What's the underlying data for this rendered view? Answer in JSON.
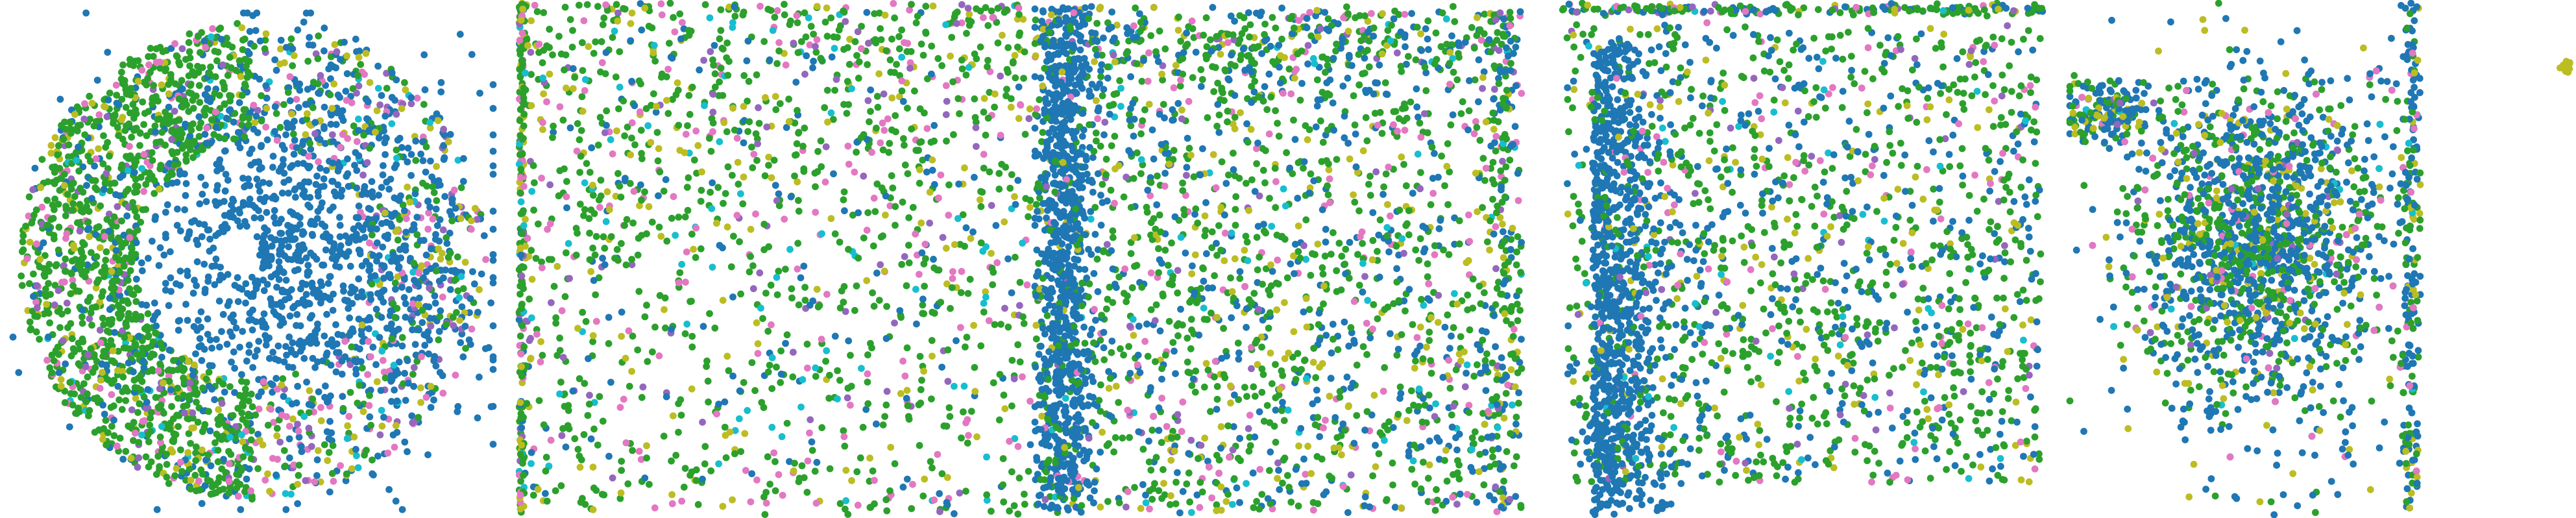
{
  "figure": {
    "panel_count": 5,
    "background": "#ffffff"
  },
  "palette": {
    "blue": "#1f77b4",
    "green": "#2ca02c",
    "olive": "#bcbd22",
    "pink": "#e377c2",
    "purple": "#9467bd",
    "cyan": "#17becf",
    "gray": "#7f7f7f"
  },
  "chart_data": [
    {
      "type": "scatter",
      "panel": 1,
      "shape": "disk",
      "axes_visible": false,
      "grid": false,
      "legend": "none",
      "series": [
        {
          "color": "#1f77b4",
          "approx_points": 1400
        },
        {
          "color": "#2ca02c",
          "approx_points": 1200
        },
        {
          "color": "#bcbd22",
          "approx_points": 220
        },
        {
          "color": "#e377c2",
          "approx_points": 200
        },
        {
          "color": "#9467bd",
          "approx_points": 140
        },
        {
          "color": "#17becf",
          "approx_points": 70
        }
      ]
    },
    {
      "type": "scatter",
      "panel": 2,
      "shape": "square",
      "axes_visible": false,
      "grid": false,
      "legend": "none",
      "series": [
        {
          "color": "#2ca02c",
          "approx_points": 950
        },
        {
          "color": "#1f77b4",
          "approx_points": 160
        },
        {
          "color": "#e377c2",
          "approx_points": 200
        },
        {
          "color": "#bcbd22",
          "approx_points": 200
        },
        {
          "color": "#9467bd",
          "approx_points": 100
        },
        {
          "color": "#17becf",
          "approx_points": 90
        }
      ]
    },
    {
      "type": "scatter",
      "panel": 3,
      "shape": "square with dense left band",
      "axes_visible": false,
      "grid": false,
      "legend": "none",
      "series": [
        {
          "color": "#1f77b4",
          "approx_points": 1500
        },
        {
          "color": "#2ca02c",
          "approx_points": 1100
        },
        {
          "color": "#bcbd22",
          "approx_points": 260
        },
        {
          "color": "#e377c2",
          "approx_points": 180
        },
        {
          "color": "#9467bd",
          "approx_points": 90
        },
        {
          "color": "#17becf",
          "approx_points": 70
        }
      ]
    },
    {
      "type": "scatter",
      "panel": 4,
      "shape": "rounded rectangle",
      "axes_visible": false,
      "grid": false,
      "legend": "none",
      "series": [
        {
          "color": "#1f77b4",
          "approx_points": 1300
        },
        {
          "color": "#2ca02c",
          "approx_points": 900
        },
        {
          "color": "#bcbd22",
          "approx_points": 160
        },
        {
          "color": "#e377c2",
          "approx_points": 110
        },
        {
          "color": "#9467bd",
          "approx_points": 70
        },
        {
          "color": "#17becf",
          "approx_points": 50
        }
      ]
    },
    {
      "type": "scatter",
      "panel": 5,
      "shape": "dense cluster with right edge spine",
      "axes_visible": false,
      "grid": false,
      "legend": "none",
      "series": [
        {
          "color": "#1f77b4",
          "approx_points": 1200
        },
        {
          "color": "#2ca02c",
          "approx_points": 650
        },
        {
          "color": "#bcbd22",
          "approx_points": 260
        },
        {
          "color": "#e377c2",
          "approx_points": 170
        },
        {
          "color": "#9467bd",
          "approx_points": 70
        },
        {
          "color": "#17becf",
          "approx_points": 40
        }
      ]
    }
  ]
}
